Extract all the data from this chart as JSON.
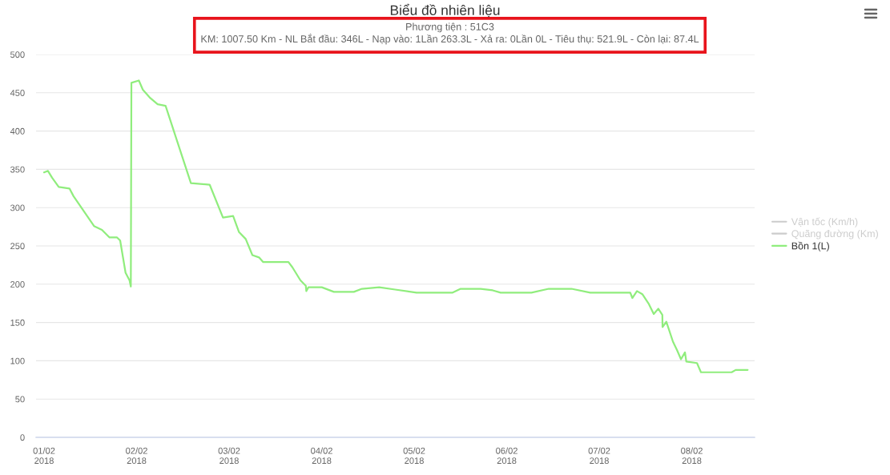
{
  "chart_data": {
    "type": "line",
    "title": "Biểu đồ nhiên liệu",
    "subtitle": "Phương tiện : 51C3\nKM: 1007.50 Km - NL Bắt đầu: 346L - Nạp vào: 1Lần 263.3L - Xả ra: 0Lần 0L - Tiêu thụ: 521.9L - Còn lại: 87.4L",
    "xlim": [
      "2018-01-31T21:55",
      "2018-02-08T16:18"
    ],
    "xticks": [
      {
        "value": "2018-02-01",
        "label": "01/02\n2018"
      },
      {
        "value": "2018-02-02",
        "label": "02/02\n2018"
      },
      {
        "value": "2018-02-03",
        "label": "03/02\n2018"
      },
      {
        "value": "2018-02-04",
        "label": "04/02\n2018"
      },
      {
        "value": "2018-02-05",
        "label": "05/02\n2018"
      },
      {
        "value": "2018-02-06",
        "label": "06/02\n2018"
      },
      {
        "value": "2018-02-07",
        "label": "07/02\n2018"
      },
      {
        "value": "2018-02-08",
        "label": "08/02\n2018"
      }
    ],
    "ylim": [
      0,
      500
    ],
    "yticks": [
      0,
      50,
      100,
      150,
      200,
      250,
      300,
      350,
      400,
      450,
      500
    ],
    "grid": "y",
    "legend": "right",
    "series": [
      {
        "name": "Vận tốc (Km/h)",
        "color": "#cccccc"
      },
      {
        "name": "Quãng đường (Km)",
        "color": "#cccccc"
      },
      {
        "name": "Bồn 1(L)",
        "color": "#90ed7d",
        "x": [
          "2018-02-01T00:00",
          "2018-02-01T01:00",
          "2018-02-01T02:05",
          "2018-02-01T03:48",
          "2018-02-01T06:35",
          "2018-02-01T07:38",
          "2018-02-01T12:57",
          "2018-02-01T15:01",
          "2018-02-01T16:59",
          "2018-02-01T18:55",
          "2018-02-01T19:44",
          "2018-02-01T21:08",
          "2018-02-01T22:10",
          "2018-02-01T22:30",
          "2018-02-01T22:39",
          "2018-02-02T00:35",
          "2018-02-02T01:37",
          "2018-02-02T03:22",
          "2018-02-02T05:27",
          "2018-02-02T07:31",
          "2018-02-02T14:05",
          "2018-02-02T18:57",
          "2018-02-02T22:24",
          "2018-02-03T01:02",
          "2018-02-03T02:34",
          "2018-02-03T04:18",
          "2018-02-03T06:02",
          "2018-02-03T07:45",
          "2018-02-03T08:47",
          "2018-02-03T15:23",
          "2018-02-03T16:25",
          "2018-02-03T18:30",
          "2018-02-03T19:53",
          "2018-02-03T20:01",
          "2018-02-03T20:34",
          "2018-02-04T00:02",
          "2018-02-04T03:10",
          "2018-02-04T08:21",
          "2018-02-04T10:26",
          "2018-02-04T14:55",
          "2018-02-04T19:04",
          "2018-02-05T00:37",
          "2018-02-05T09:58",
          "2018-02-05T12:03",
          "2018-02-05T17:15",
          "2018-02-05T20:22",
          "2018-02-05T22:26",
          "2018-02-06T06:24",
          "2018-02-06T10:54",
          "2018-02-06T16:48",
          "2018-02-06T21:40",
          "2018-02-07T08:03",
          "2018-02-07T08:35",
          "2018-02-07T09:47",
          "2018-02-07T11:10",
          "2018-02-07T12:53",
          "2018-02-07T14:08",
          "2018-02-07T15:19",
          "2018-02-07T16:22",
          "2018-02-07T16:25",
          "2018-02-07T17:24",
          "2018-02-07T19:07",
          "2018-02-07T20:10",
          "2018-02-07T21:12",
          "2018-02-07T22:14",
          "2018-02-07T22:35",
          "2018-02-08T01:21",
          "2018-02-08T02:23",
          "2018-02-08T10:21",
          "2018-02-08T11:23",
          "2018-02-08T14:30"
        ],
        "values": [
          346,
          348,
          339,
          327,
          325,
          315,
          276,
          271,
          261,
          261,
          257,
          215,
          205,
          197,
          463,
          466,
          454,
          444,
          435,
          433,
          332,
          330,
          287,
          289,
          268,
          259,
          238,
          235,
          229,
          229,
          222,
          205,
          198,
          191,
          196,
          196,
          190,
          190,
          194,
          196,
          193,
          189,
          189,
          194,
          194,
          192,
          189,
          189,
          194,
          194,
          189,
          189,
          182,
          191,
          187,
          174,
          161,
          168,
          160,
          144,
          151,
          125,
          114,
          102,
          111,
          99,
          97,
          85,
          85,
          88,
          88
        ]
      }
    ]
  }
}
